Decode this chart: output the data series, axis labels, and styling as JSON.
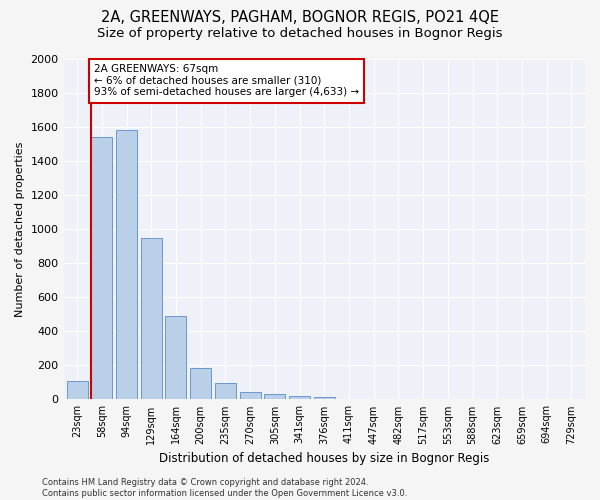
{
  "title": "2A, GREENWAYS, PAGHAM, BOGNOR REGIS, PO21 4QE",
  "subtitle": "Size of property relative to detached houses in Bognor Regis",
  "xlabel": "Distribution of detached houses by size in Bognor Regis",
  "ylabel": "Number of detached properties",
  "categories": [
    "23sqm",
    "58sqm",
    "94sqm",
    "129sqm",
    "164sqm",
    "200sqm",
    "235sqm",
    "270sqm",
    "305sqm",
    "341sqm",
    "376sqm",
    "411sqm",
    "447sqm",
    "482sqm",
    "517sqm",
    "553sqm",
    "588sqm",
    "623sqm",
    "659sqm",
    "694sqm",
    "729sqm"
  ],
  "values": [
    110,
    1540,
    1580,
    950,
    490,
    185,
    95,
    45,
    30,
    18,
    14,
    0,
    0,
    0,
    0,
    0,
    0,
    0,
    0,
    0,
    0
  ],
  "bar_color": "#bad0e8",
  "bar_edgecolor": "#5b8cc8",
  "annotation_text": "2A GREENWAYS: 67sqm\n← 6% of detached houses are smaller (310)\n93% of semi-detached houses are larger (4,633) →",
  "annotation_box_color": "#ffffff",
  "annotation_box_edgecolor": "#cc0000",
  "ylim": [
    0,
    2000
  ],
  "yticks": [
    0,
    200,
    400,
    600,
    800,
    1000,
    1200,
    1400,
    1600,
    1800,
    2000
  ],
  "bg_color": "#eef2f8",
  "grid_color": "#ffffff",
  "footer": "Contains HM Land Registry data © Crown copyright and database right 2024.\nContains public sector information licensed under the Open Government Licence v3.0.",
  "property_line_index": 1,
  "title_fontsize": 10.5,
  "subtitle_fontsize": 9.5
}
